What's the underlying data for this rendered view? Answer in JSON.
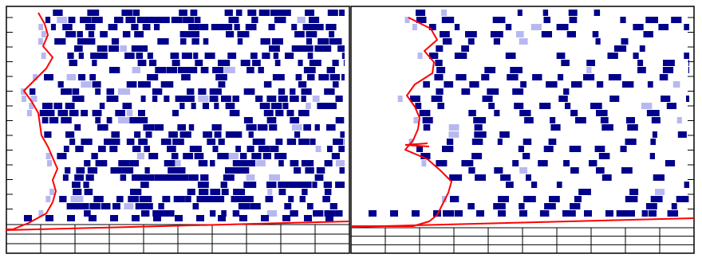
{
  "colors": {
    "background": "#ffffff",
    "frame": "#000000",
    "grid": "#000000",
    "mark_dark": "#00008b",
    "mark_light": "#b8b8f0",
    "trace": "#ff0000"
  },
  "panels": [
    {
      "name": "left-panel",
      "grid_columns": 10,
      "grid_rows": 3,
      "baseline_slope": "rising",
      "trace_shape": "wavy-left-edge"
    },
    {
      "name": "right-panel",
      "grid_columns": 10,
      "grid_rows": 3,
      "baseline_slope": "rising",
      "trace_shape": "wavy-left-edge-with-spike"
    }
  ]
}
